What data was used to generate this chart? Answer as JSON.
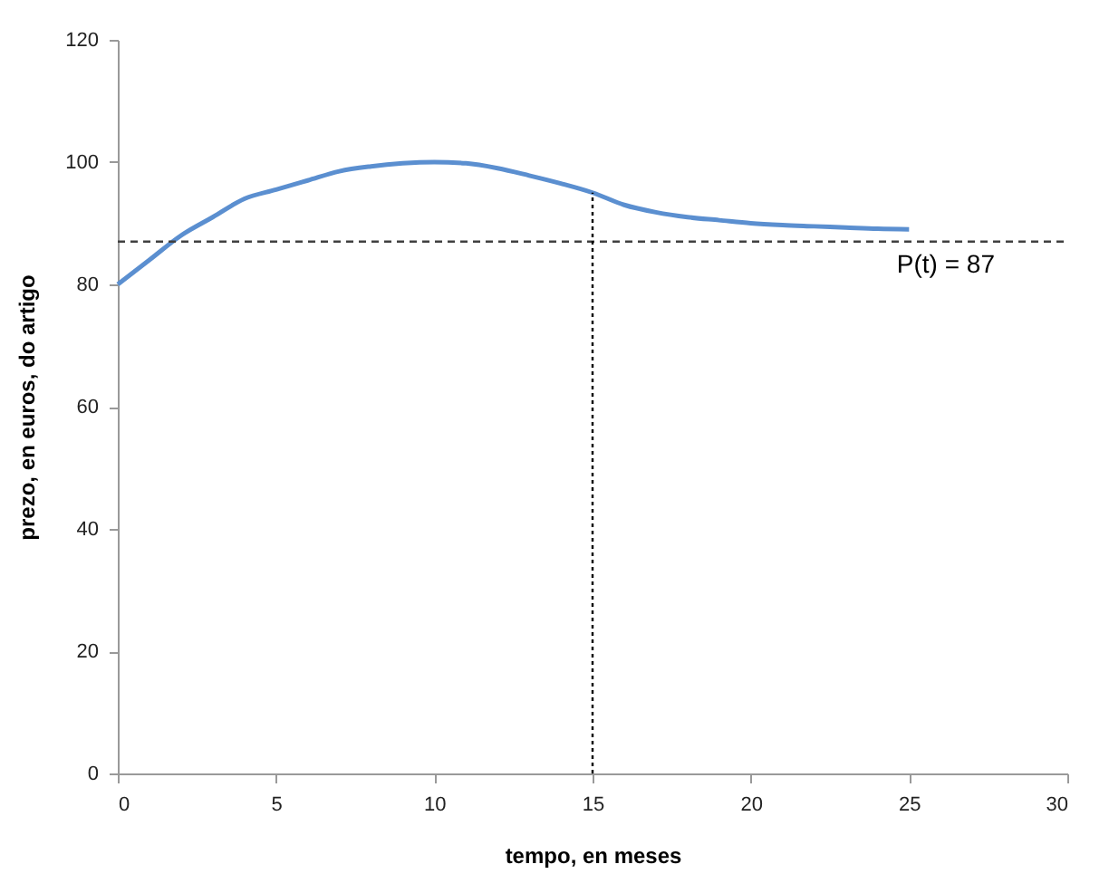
{
  "chart_data": {
    "type": "line",
    "xlabel": "tempo, en meses",
    "ylabel": "prezo, en euros, do artigo",
    "x": [
      0,
      1,
      2,
      3,
      4,
      5,
      6,
      7,
      8,
      9,
      10,
      11,
      12,
      13,
      14,
      15,
      16,
      17,
      18,
      19,
      20,
      21,
      22,
      23,
      24,
      25
    ],
    "series": [
      {
        "color": "#5b8fd0",
        "values": [
          80,
          84,
          88,
          91,
          94,
          95.5,
          97,
          98.5,
          99.3,
          99.8,
          100,
          99.8,
          99,
          97.8,
          96.5,
          95,
          93,
          91.8,
          91,
          90.5,
          90,
          89.7,
          89.5,
          89.3,
          89.1,
          89
        ]
      }
    ],
    "xlim": [
      0,
      30
    ],
    "xticks": [
      0,
      5,
      10,
      15,
      20,
      25,
      30
    ],
    "ylim": [
      0,
      120
    ],
    "yticks": [
      0,
      20,
      40,
      60,
      80,
      100,
      120
    ],
    "grid": false,
    "legend": false,
    "marker": "none",
    "line_style": "solid",
    "ref_lines": [
      {
        "axis": "y",
        "value": 87,
        "label": "P(t) = 87",
        "line_style": "dashed",
        "color": "#404040"
      },
      {
        "axis": "x",
        "value": 15,
        "line_style": "dotted",
        "color": "#000000"
      }
    ]
  }
}
